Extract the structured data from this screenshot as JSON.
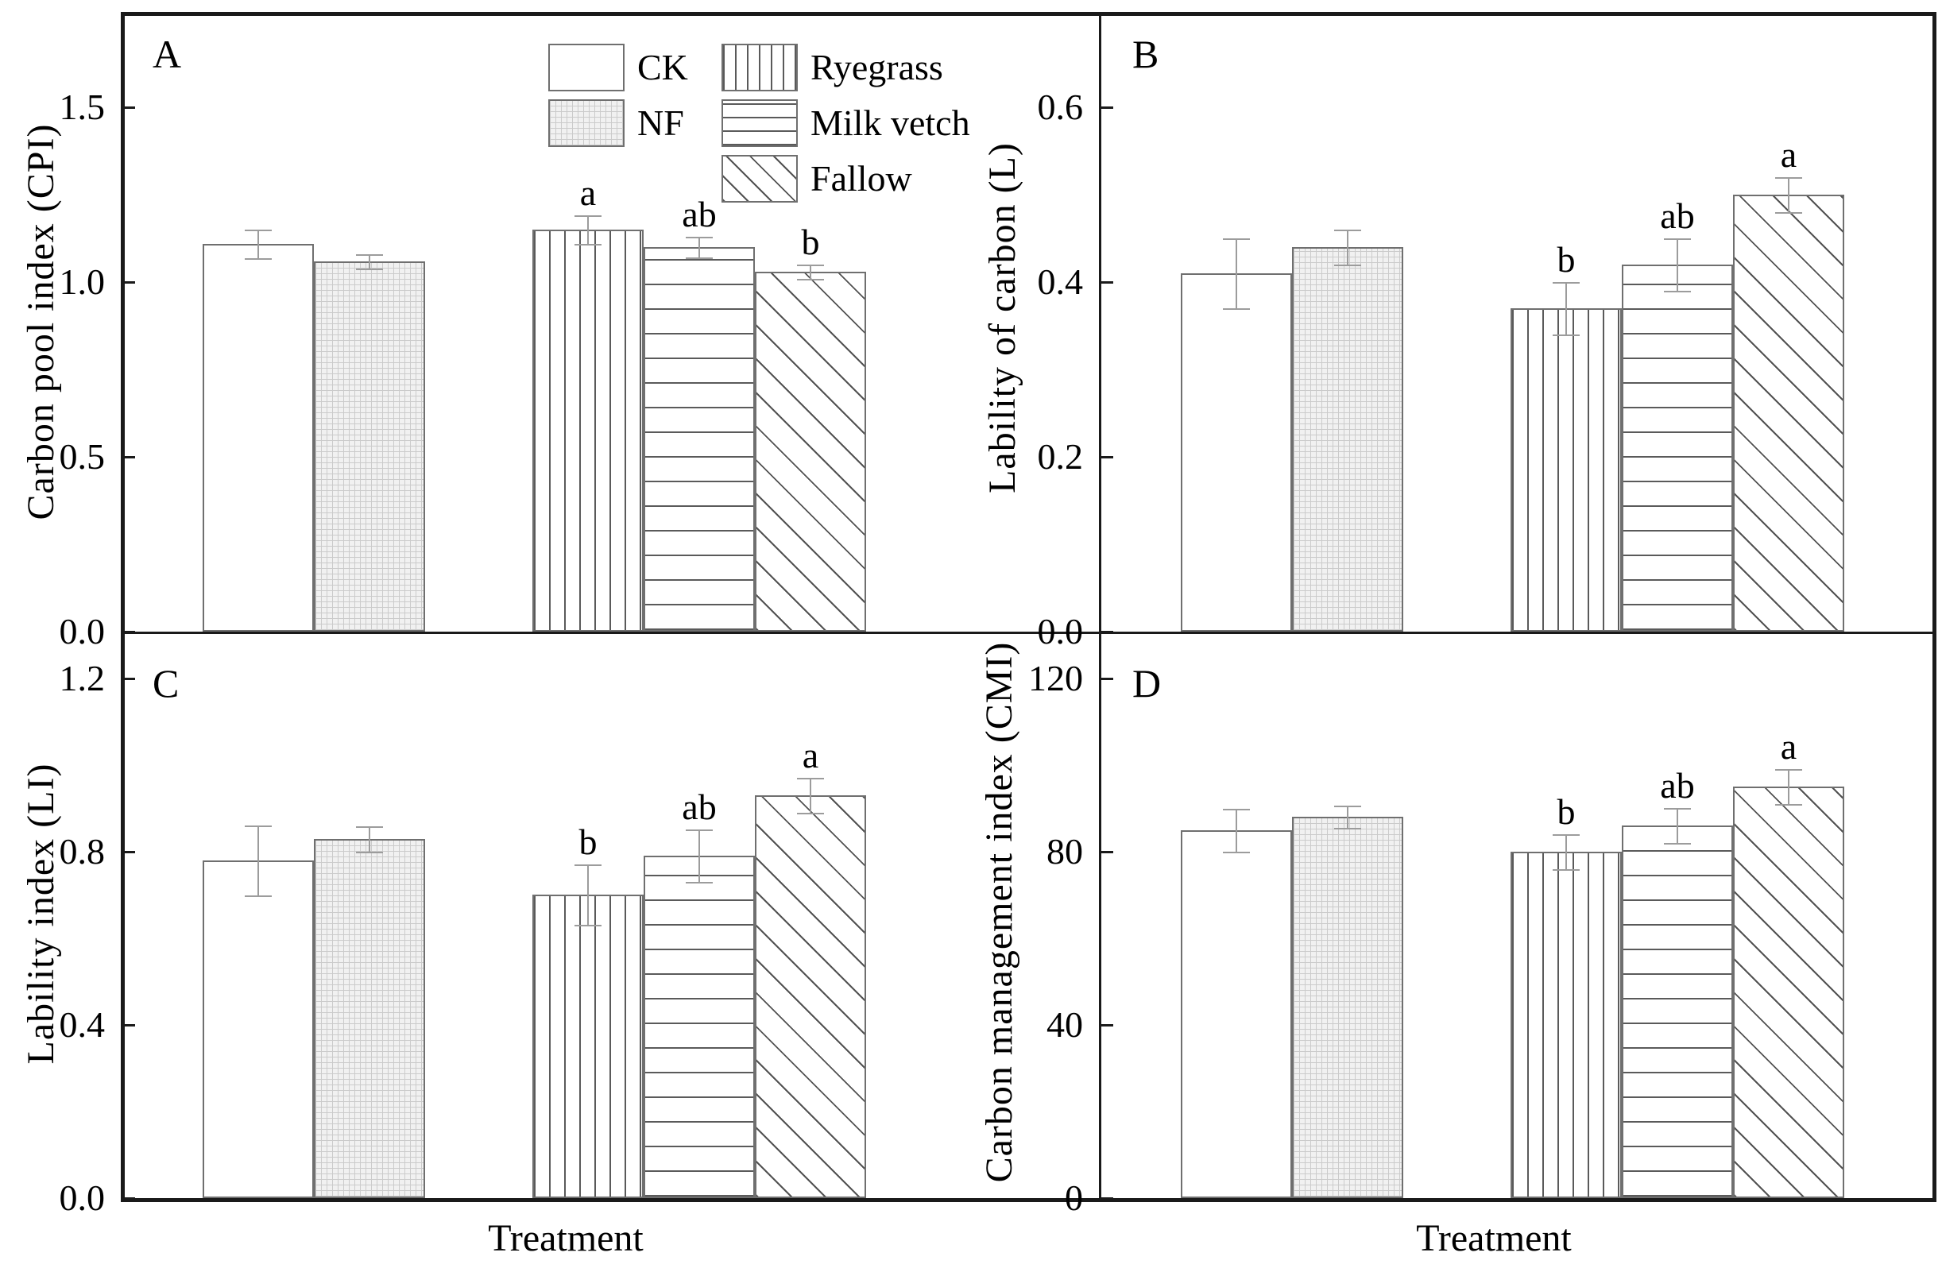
{
  "figure": {
    "xlabel": "Treatment",
    "treatments": [
      "CK",
      "NF",
      "Ryegrass",
      "Milk vetch",
      "Fallow"
    ],
    "legend": [
      {
        "label": "CK",
        "pattern": "plain"
      },
      {
        "label": "NF",
        "pattern": "grid"
      },
      {
        "label": "Ryegrass",
        "pattern": "vlines"
      },
      {
        "label": "Milk vetch",
        "pattern": "hlines"
      },
      {
        "label": "Fallow",
        "pattern": "diag"
      }
    ],
    "colors": {
      "axis": "#1a1a1a",
      "bar_outline": "#6f6f6f",
      "error_bar": "#9c9c9c",
      "nf_fill": "#f1f1f1",
      "hatch_line": "#5a5a5a"
    }
  },
  "chart_data": [
    {
      "panel": "A",
      "type": "bar",
      "ylabel": "Carbon pool index (CPI)",
      "xlabel": "Treatment",
      "categories": [
        "CK",
        "NF",
        "Ryegrass",
        "Milk vetch",
        "Fallow"
      ],
      "values": [
        1.11,
        1.06,
        1.15,
        1.1,
        1.03
      ],
      "errors": [
        0.04,
        0.02,
        0.04,
        0.03,
        0.02
      ],
      "sig_letters": [
        "",
        "",
        "a",
        "ab",
        "b"
      ],
      "ytick_labels": [
        "0.0",
        "0.5",
        "1.0",
        "1.5"
      ],
      "ytick_values": [
        0,
        0.5,
        1.0,
        1.5
      ],
      "ytick_step": 0.5,
      "ylim": [
        0,
        1.77
      ],
      "grid": false,
      "legend_position": "top-inside"
    },
    {
      "panel": "B",
      "type": "bar",
      "ylabel": "Lability of carbon (L)",
      "xlabel": "Treatment",
      "categories": [
        "CK",
        "NF",
        "Ryegrass",
        "Milk vetch",
        "Fallow"
      ],
      "values": [
        0.41,
        0.44,
        0.37,
        0.42,
        0.5
      ],
      "errors": [
        0.04,
        0.02,
        0.03,
        0.03,
        0.02
      ],
      "sig_letters": [
        "",
        "",
        "b",
        "ab",
        "a"
      ],
      "ytick_labels": [
        "0.0",
        "0.2",
        "0.4",
        "0.6"
      ],
      "ytick_values": [
        0,
        0.2,
        0.4,
        0.6
      ],
      "ytick_step": 0.2,
      "ylim": [
        0,
        0.71
      ],
      "grid": false,
      "legend_position": "none"
    },
    {
      "panel": "C",
      "type": "bar",
      "ylabel": "Lability index (LI)",
      "xlabel": "Treatment",
      "categories": [
        "CK",
        "NF",
        "Ryegrass",
        "Milk vetch",
        "Fallow"
      ],
      "values": [
        0.78,
        0.83,
        0.7,
        0.79,
        0.93
      ],
      "errors": [
        0.08,
        0.03,
        0.07,
        0.06,
        0.04
      ],
      "sig_letters": [
        "",
        "",
        "b",
        "ab",
        "a"
      ],
      "ytick_labels": [
        "0.0",
        "0.4",
        "0.8",
        "1.2"
      ],
      "ytick_values": [
        0,
        0.4,
        0.8,
        1.2
      ],
      "ytick_step": 0.4,
      "ylim": [
        0,
        1.31
      ],
      "grid": false,
      "legend_position": "none"
    },
    {
      "panel": "D",
      "type": "bar",
      "ylabel": "Carbon management index (CMI)",
      "xlabel": "Treatment",
      "categories": [
        "CK",
        "NF",
        "Ryegrass",
        "Milk vetch",
        "Fallow"
      ],
      "values": [
        85,
        88,
        80,
        86,
        95
      ],
      "errors": [
        5,
        2.5,
        4,
        4,
        4
      ],
      "sig_letters": [
        "",
        "",
        "b",
        "ab",
        "a"
      ],
      "ytick_labels": [
        "0",
        "40",
        "80",
        "120"
      ],
      "ytick_values": [
        0,
        40,
        80,
        120
      ],
      "ytick_step": 40,
      "ylim": [
        0,
        131
      ],
      "grid": false,
      "legend_position": "none"
    }
  ]
}
